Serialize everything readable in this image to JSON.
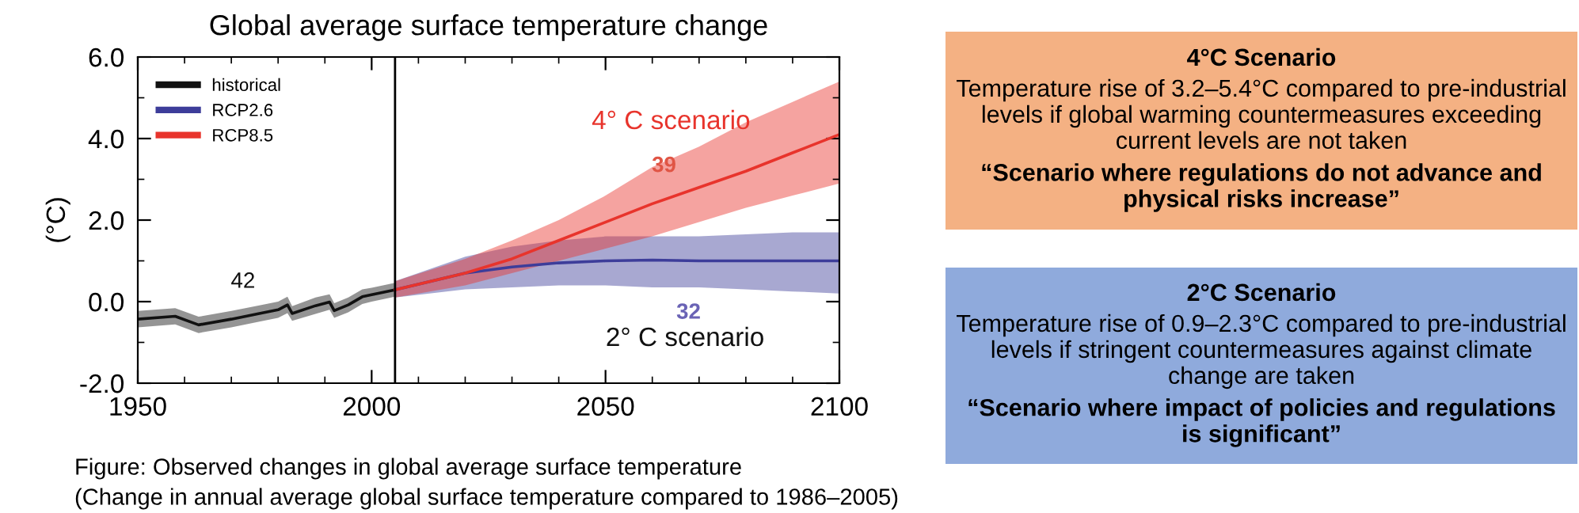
{
  "chart_data": [
    {
      "type": "line",
      "title": "Global average surface temperature change",
      "ylabel": "(°C)",
      "xlim": [
        1950,
        2100
      ],
      "ylim": [
        -2,
        6
      ],
      "xticks": [
        1950,
        2000,
        2050,
        2100
      ],
      "yticks": [
        {
          "value": -2,
          "label": "-2.0"
        },
        {
          "value": 0,
          "label": "0.0"
        },
        {
          "value": 2,
          "label": "2.0"
        },
        {
          "value": 4,
          "label": "4.0"
        },
        {
          "value": 6,
          "label": "6.0"
        }
      ],
      "grid": false,
      "legend": "top left",
      "line_style": "solid",
      "marker": "none",
      "series": [
        {
          "name": "historical",
          "color": "#111111",
          "x": [
            1950,
            1958,
            1963,
            1970,
            1976,
            1980,
            1982,
            1983,
            1988,
            1991,
            1992,
            1995,
            1998,
            2000,
            2005
          ],
          "values": [
            -0.43,
            -0.36,
            -0.57,
            -0.43,
            -0.29,
            -0.2,
            -0.08,
            -0.29,
            -0.1,
            -0.01,
            -0.22,
            -0.08,
            0.12,
            0.17,
            0.29
          ],
          "lower": [
            -0.63,
            -0.56,
            -0.77,
            -0.63,
            -0.49,
            -0.4,
            -0.28,
            -0.47,
            -0.3,
            -0.2,
            -0.4,
            -0.26,
            -0.06,
            0.0,
            0.12
          ],
          "upper": [
            -0.23,
            -0.16,
            -0.37,
            -0.23,
            -0.09,
            0.0,
            0.12,
            -0.11,
            0.1,
            0.18,
            -0.04,
            0.1,
            0.3,
            0.34,
            0.46
          ]
        },
        {
          "name": "RCP2.6",
          "color": "#3d3d9a",
          "x": [
            2005,
            2020,
            2030,
            2040,
            2050,
            2060,
            2070,
            2080,
            2090,
            2100
          ],
          "values": [
            0.29,
            0.7,
            0.85,
            0.95,
            1.0,
            1.02,
            1.0,
            1.0,
            1.0,
            1.0
          ],
          "lower": [
            0.1,
            0.3,
            0.35,
            0.4,
            0.4,
            0.35,
            0.35,
            0.3,
            0.25,
            0.2
          ],
          "upper": [
            0.5,
            1.1,
            1.35,
            1.5,
            1.6,
            1.6,
            1.6,
            1.65,
            1.7,
            1.7
          ]
        },
        {
          "name": "RCP8.5",
          "color": "#e8342c",
          "x": [
            2005,
            2020,
            2030,
            2040,
            2050,
            2060,
            2070,
            2080,
            2090,
            2100
          ],
          "values": [
            0.29,
            0.7,
            1.05,
            1.5,
            1.95,
            2.4,
            2.8,
            3.2,
            3.65,
            4.1
          ],
          "lower": [
            0.1,
            0.4,
            0.7,
            1.0,
            1.3,
            1.6,
            1.95,
            2.3,
            2.6,
            2.9
          ],
          "upper": [
            0.5,
            1.05,
            1.5,
            2.0,
            2.6,
            3.3,
            3.8,
            4.4,
            4.9,
            5.4
          ]
        }
      ],
      "ref_lines": [
        {
          "axis": "x",
          "value": 2005,
          "label": null,
          "color": "#000000"
        }
      ],
      "annotations": [
        "4° C scenario",
        "39",
        "42",
        "32",
        "2° C scenario",
        "Figure: Observed changes in global average surface temperature",
        "(Change in annual average global surface temperature compared to 1986–2005)"
      ]
    },
    {
      "type": "other",
      "color": "#f4b183",
      "title": "4°C Scenario",
      "annotations": [
        "Temperature rise of 3.2–5.4°C compared to pre-industrial levels if global warming countermeasures exceeding current levels are not taken",
        "“Scenario where regulations do not advance and physical risks increase”"
      ]
    },
    {
      "type": "other",
      "color": "#8faadc",
      "title": "2°C Scenario",
      "annotations": [
        "Temperature rise of 0.9–2.3°C compared to pre-industrial levels if stringent countermeasures against climate change are taken",
        "“Scenario where impact of policies and regulations is significant”"
      ]
    }
  ]
}
